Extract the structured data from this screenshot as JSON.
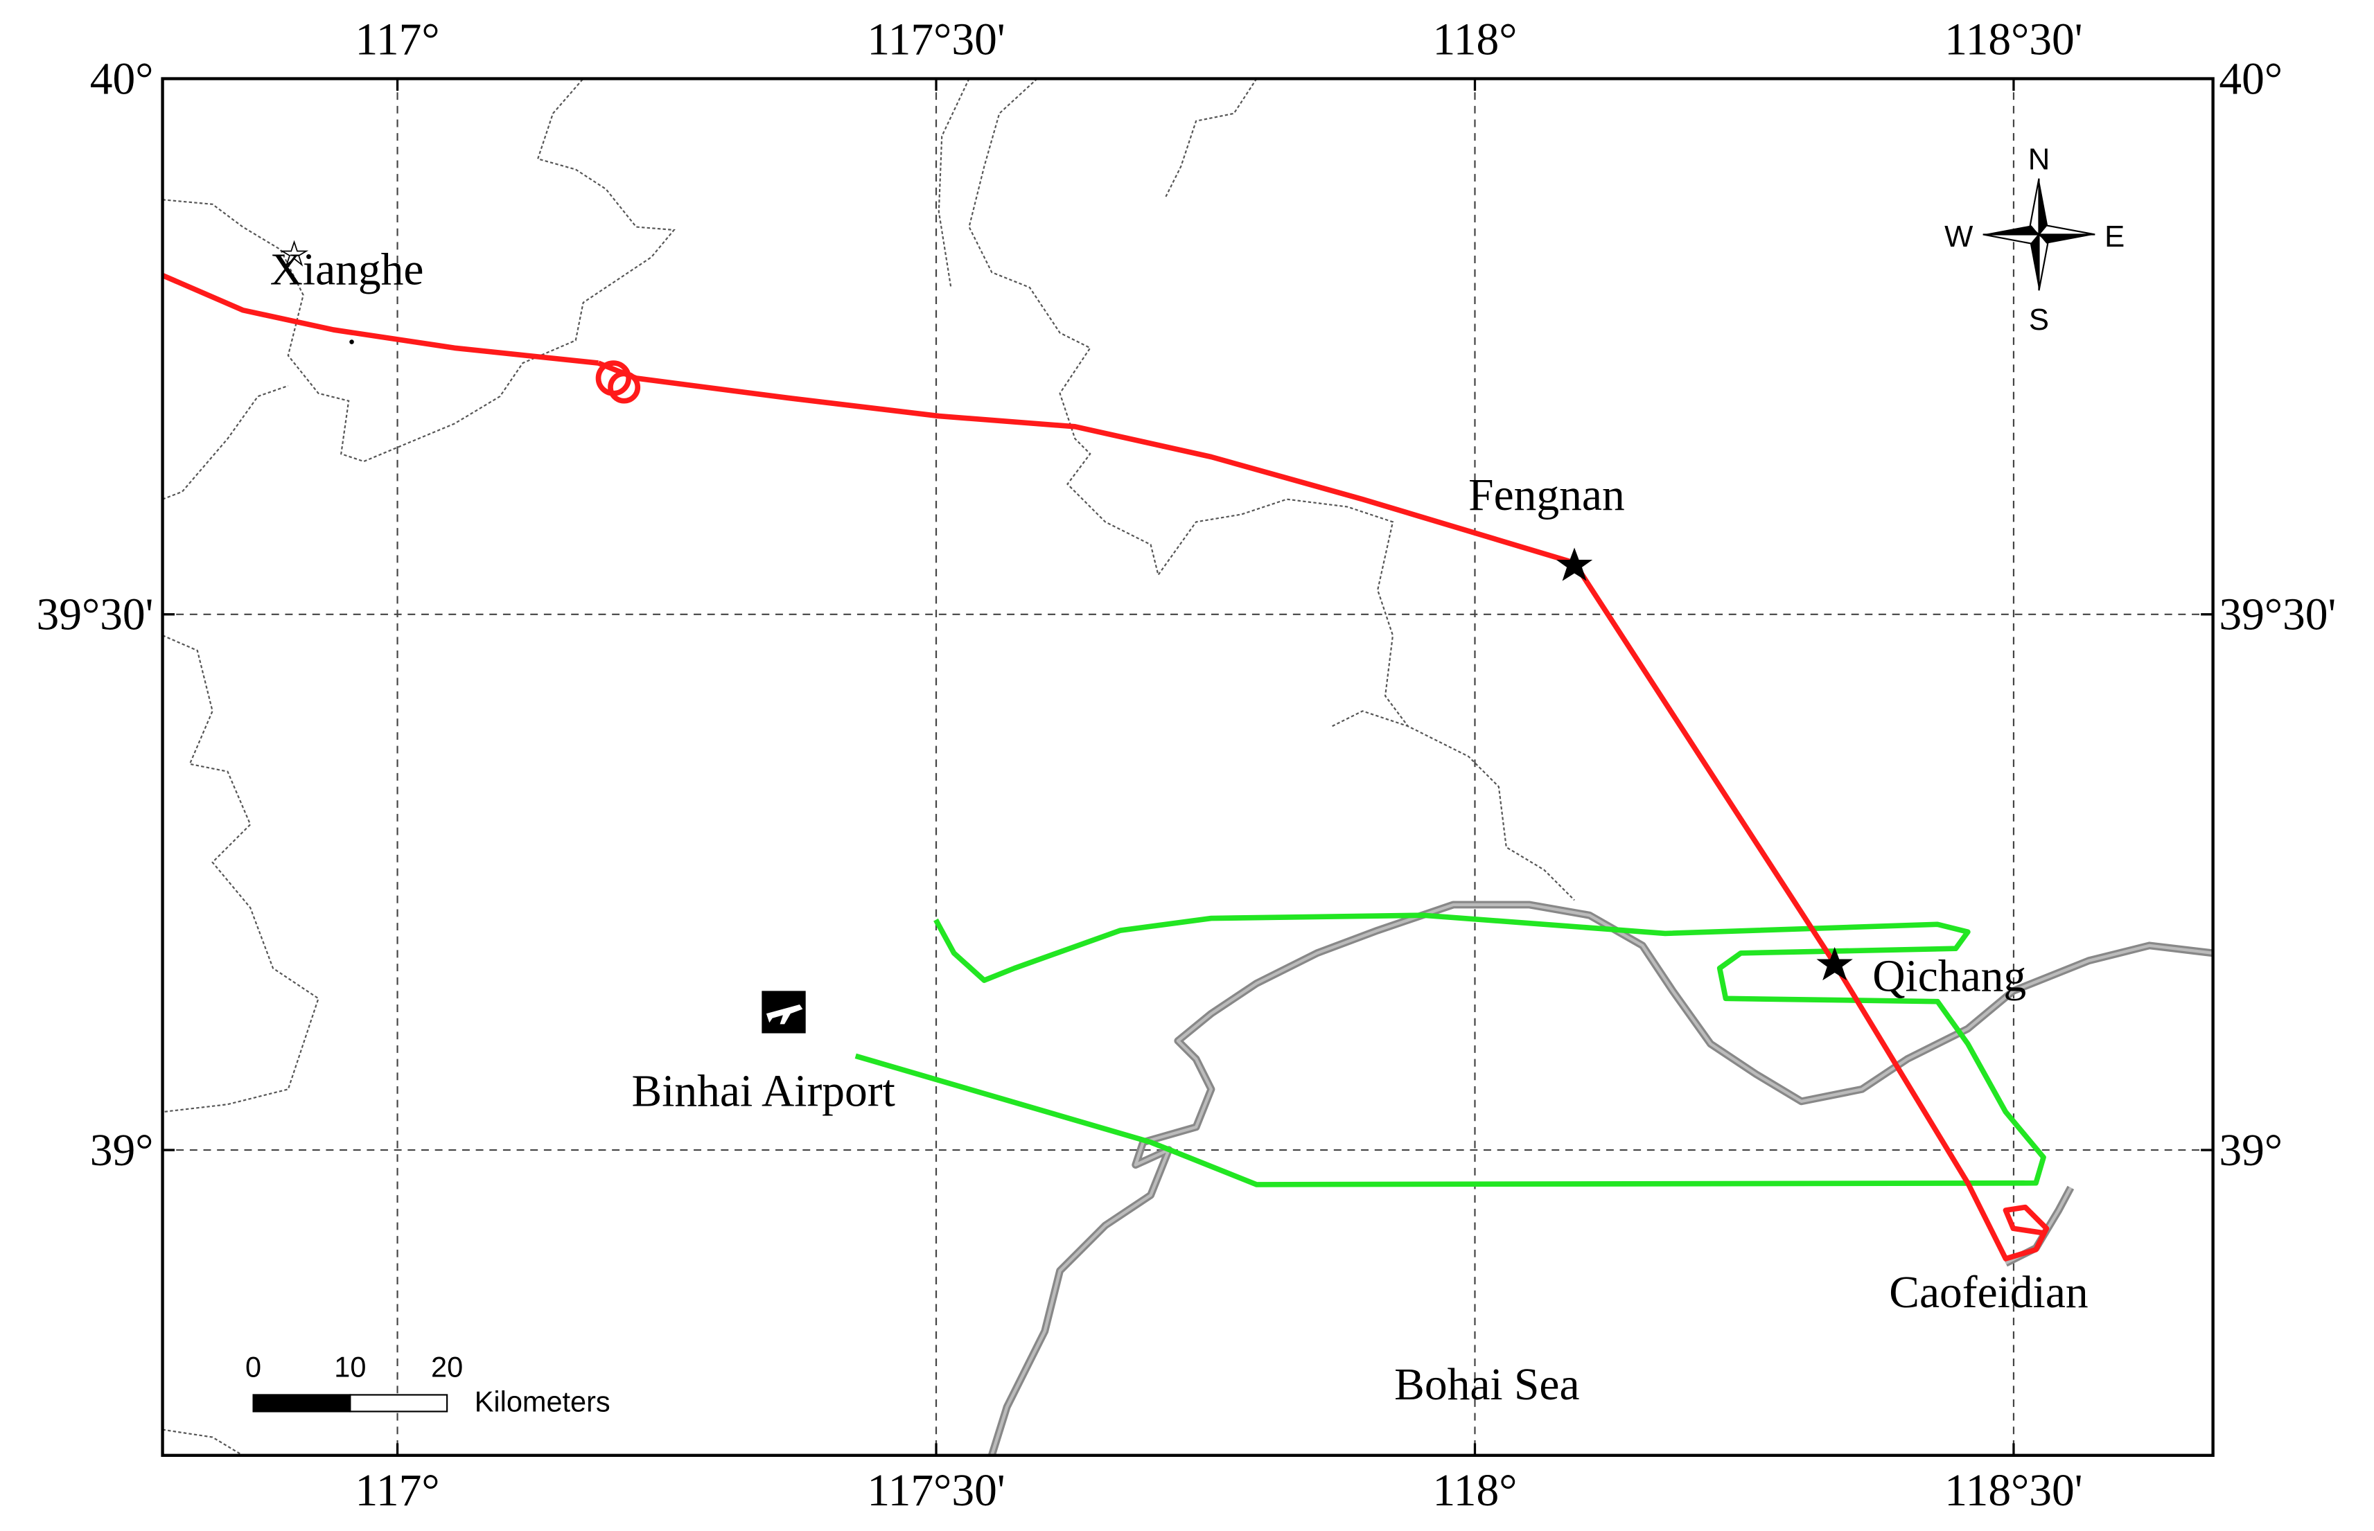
{
  "map": {
    "xlim": [
      116.782,
      118.685
    ],
    "ylim": [
      38.715,
      40
    ],
    "xticks": [
      {
        "value": 117,
        "label": "117°"
      },
      {
        "value": 117.5,
        "label": "117°30'"
      },
      {
        "value": 118,
        "label": "118°"
      },
      {
        "value": 118.5,
        "label": "118°30'"
      }
    ],
    "yticks": [
      {
        "value": 39,
        "label": "39°"
      },
      {
        "value": 39.5,
        "label": "39°30'"
      },
      {
        "value": 40,
        "label": "40°"
      }
    ],
    "places": [
      "Xianghe",
      "Fengnan",
      "Qichang",
      "Binhai Airport",
      "Caofeidian",
      "Bohai Sea"
    ],
    "compass": {
      "n": "N",
      "s": "S",
      "e": "E",
      "w": "W"
    },
    "scale_bar": {
      "ticks": [
        0,
        10,
        20
      ],
      "unit": "Kilometers"
    }
  }
}
